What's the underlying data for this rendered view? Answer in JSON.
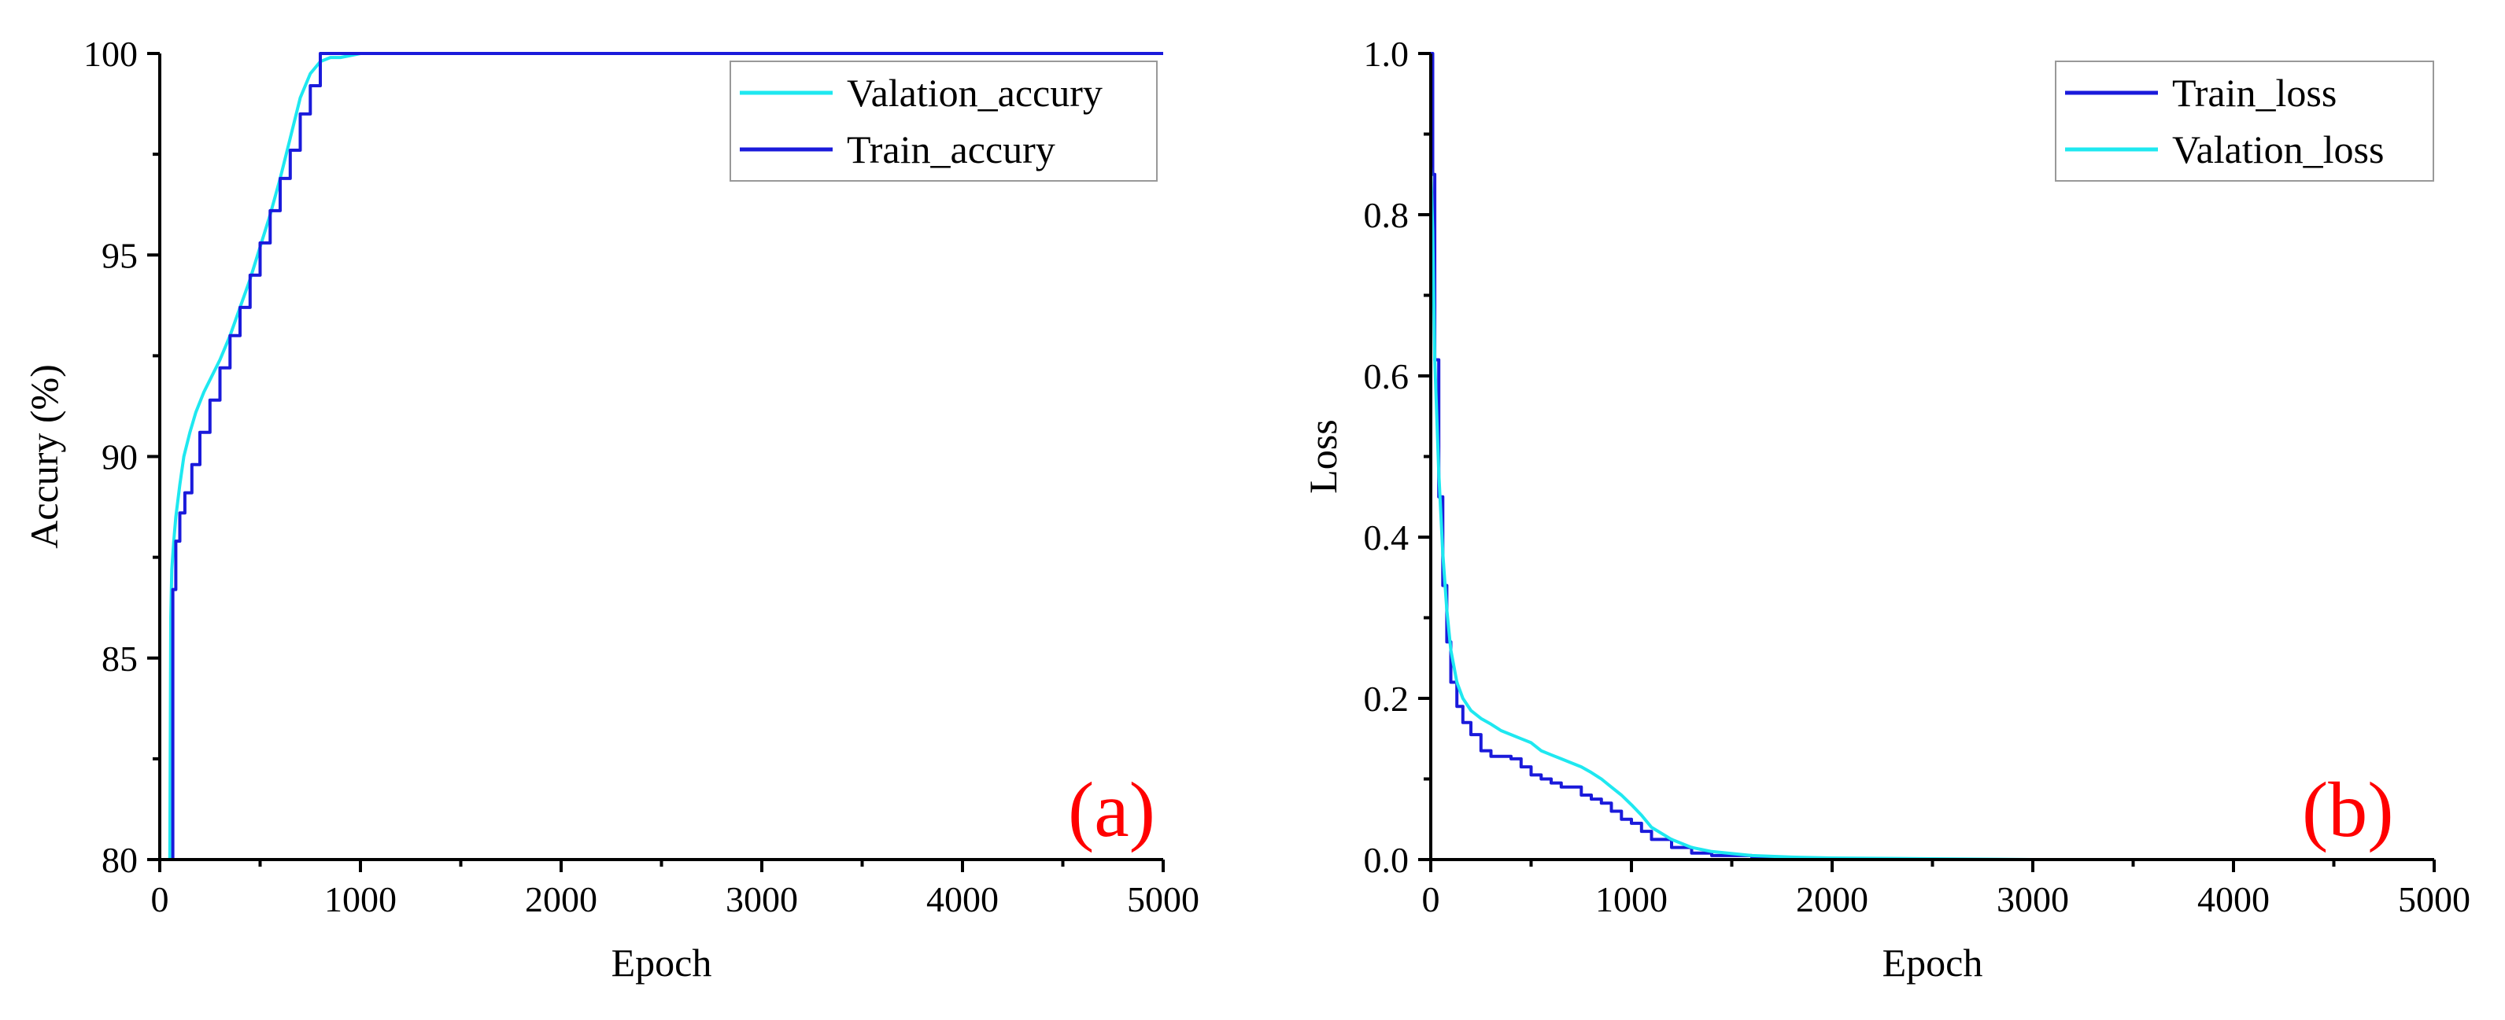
{
  "chart_data": [
    {
      "type": "line",
      "panel_label": "(a)",
      "xlabel": "Epoch",
      "ylabel": "Accury (%)",
      "xlim": [
        0,
        5000
      ],
      "ylim": [
        80,
        100
      ],
      "xticks": [
        0,
        1000,
        2000,
        3000,
        4000,
        5000
      ],
      "yticks": [
        80,
        85,
        90,
        95,
        100
      ],
      "xtick_labels": [
        "0",
        "1000",
        "2000",
        "3000",
        "4000",
        "5000"
      ],
      "ytick_labels": [
        "80",
        "85",
        "90",
        "95",
        "100"
      ],
      "legend_position": "top-right",
      "colors": {
        "train": "#1a1adb",
        "valid": "#1ee8f0",
        "tag": "#ff0000"
      },
      "series": [
        {
          "name": "Valation_accury",
          "color": "#1ee8f0",
          "x": [
            50,
            55,
            60,
            70,
            80,
            100,
            120,
            150,
            180,
            220,
            260,
            300,
            350,
            400,
            450,
            500,
            550,
            600,
            650,
            700,
            750,
            800,
            850,
            900,
            950,
            1000
          ],
          "y": [
            80,
            86,
            87.2,
            87.9,
            88.5,
            89.3,
            90.0,
            90.6,
            91.1,
            91.6,
            92.0,
            92.4,
            93.0,
            93.7,
            94.4,
            95.2,
            96.0,
            96.9,
            97.9,
            98.9,
            99.5,
            99.8,
            99.9,
            99.9,
            99.95,
            100
          ]
        },
        {
          "name": "Train_accury",
          "color": "#1a1adb",
          "x": [
            50,
            65,
            80,
            100,
            125,
            160,
            200,
            250,
            300,
            350,
            400,
            450,
            500,
            550,
            600,
            650,
            700,
            750,
            800,
            5000
          ],
          "y": [
            80,
            86.7,
            87.9,
            88.6,
            89.1,
            89.8,
            90.6,
            91.4,
            92.2,
            93.0,
            93.7,
            94.5,
            95.3,
            96.1,
            96.9,
            97.6,
            98.5,
            99.2,
            100,
            100
          ],
          "step": true
        }
      ]
    },
    {
      "type": "line",
      "panel_label": "(b)",
      "xlabel": "Epoch",
      "ylabel": "Loss",
      "xlim": [
        0,
        5000
      ],
      "ylim": [
        0,
        1.0
      ],
      "xticks": [
        0,
        1000,
        2000,
        3000,
        4000,
        5000
      ],
      "yticks": [
        0.0,
        0.2,
        0.4,
        0.6,
        0.8,
        1.0
      ],
      "xtick_labels": [
        "0",
        "1000",
        "2000",
        "3000",
        "4000",
        "5000"
      ],
      "ytick_labels": [
        "0.0",
        "0.2",
        "0.4",
        "0.6",
        "0.8",
        "1.0"
      ],
      "legend_position": "top-right",
      "colors": {
        "train": "#1a1adb",
        "valid": "#1ee8f0",
        "tag": "#ff0000"
      },
      "series": [
        {
          "name": "Train_loss",
          "color": "#1a1adb",
          "x": [
            0,
            10,
            20,
            40,
            60,
            80,
            100,
            130,
            160,
            200,
            250,
            300,
            400,
            450,
            500,
            550,
            600,
            650,
            700,
            750,
            800,
            850,
            900,
            950,
            1000,
            1050,
            1100,
            1200,
            1300,
            1400,
            1600,
            1800,
            2000,
            2500,
            3000,
            5000
          ],
          "y": [
            1.0,
            0.85,
            0.62,
            0.45,
            0.34,
            0.27,
            0.22,
            0.19,
            0.17,
            0.155,
            0.135,
            0.128,
            0.125,
            0.115,
            0.105,
            0.1,
            0.095,
            0.09,
            0.09,
            0.08,
            0.075,
            0.07,
            0.06,
            0.05,
            0.045,
            0.035,
            0.025,
            0.015,
            0.008,
            0.005,
            0.002,
            0.001,
            0.0,
            0.0,
            0.0,
            0.0
          ],
          "step": true
        },
        {
          "name": "Valation_loss",
          "color": "#1ee8f0",
          "x": [
            0,
            10,
            20,
            40,
            60,
            80,
            100,
            130,
            160,
            200,
            250,
            300,
            350,
            400,
            450,
            500,
            550,
            600,
            650,
            700,
            750,
            800,
            850,
            900,
            950,
            1000,
            1050,
            1100,
            1200,
            1300,
            1400,
            1600,
            1800,
            2000,
            2500,
            3000,
            5000
          ],
          "y": [
            0.86,
            0.78,
            0.62,
            0.48,
            0.38,
            0.31,
            0.26,
            0.22,
            0.2,
            0.185,
            0.175,
            0.168,
            0.16,
            0.155,
            0.15,
            0.145,
            0.135,
            0.13,
            0.125,
            0.12,
            0.115,
            0.108,
            0.1,
            0.09,
            0.08,
            0.068,
            0.055,
            0.04,
            0.025,
            0.015,
            0.01,
            0.005,
            0.003,
            0.002,
            0.001,
            0.0,
            0.0
          ]
        }
      ]
    }
  ]
}
